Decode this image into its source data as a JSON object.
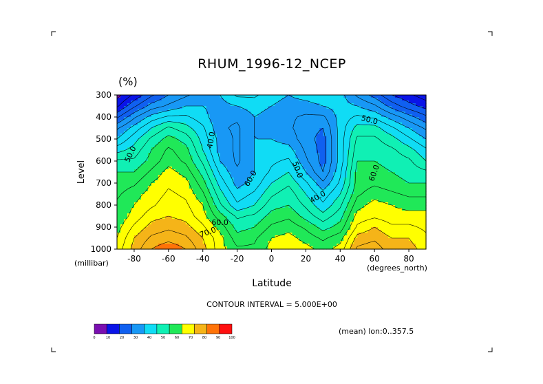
{
  "chart_data": {
    "type": "heatmap",
    "title": "RHUM_1996-12_NCEP",
    "units_label": "(%)",
    "ylabel": "Level",
    "ylabel_units": "(millibar)",
    "xlabel": "Latitude",
    "xlabel_units": "(degrees_north)",
    "contour_interval_text": "CONTOUR INTERVAL = 5.000E+00",
    "annotation": "(mean) lon:0..357.5",
    "xlim": [
      -90,
      90
    ],
    "ylim": [
      300,
      1000
    ],
    "x_ticks": [
      -80,
      -60,
      -40,
      -20,
      0,
      20,
      40,
      60,
      80
    ],
    "y_ticks": [
      300,
      400,
      500,
      600,
      700,
      800,
      900,
      1000
    ],
    "levels": [
      1000,
      950,
      900,
      850,
      800,
      750,
      700,
      650,
      600,
      550,
      500,
      450,
      400,
      350,
      300
    ],
    "latitudes": [
      -90,
      -80,
      -70,
      -60,
      -50,
      -40,
      -30,
      -20,
      -10,
      0,
      10,
      20,
      30,
      40,
      50,
      60,
      70,
      80,
      90
    ],
    "values": [
      [
        72,
        82,
        90,
        94,
        90,
        82,
        72,
        66,
        66,
        72,
        74,
        72,
        68,
        72,
        86,
        88,
        82,
        82,
        78
      ],
      [
        70,
        80,
        86,
        88,
        86,
        80,
        72,
        62,
        64,
        70,
        72,
        68,
        64,
        68,
        82,
        84,
        80,
        80,
        76
      ],
      [
        68,
        76,
        82,
        84,
        82,
        76,
        68,
        58,
        60,
        66,
        68,
        64,
        58,
        62,
        76,
        80,
        76,
        76,
        74
      ],
      [
        66,
        72,
        78,
        80,
        78,
        72,
        62,
        54,
        56,
        62,
        64,
        58,
        52,
        58,
        72,
        74,
        72,
        72,
        72
      ],
      [
        66,
        70,
        74,
        78,
        76,
        70,
        56,
        46,
        50,
        58,
        60,
        54,
        46,
        54,
        68,
        72,
        70,
        68,
        68
      ],
      [
        64,
        68,
        72,
        76,
        74,
        66,
        52,
        42,
        46,
        54,
        58,
        50,
        42,
        50,
        64,
        68,
        66,
        64,
        64
      ],
      [
        62,
        64,
        70,
        74,
        72,
        62,
        48,
        38,
        42,
        50,
        54,
        46,
        36,
        46,
        62,
        64,
        62,
        60,
        60
      ],
      [
        60,
        60,
        66,
        72,
        68,
        58,
        44,
        36,
        40,
        46,
        50,
        40,
        30,
        44,
        62,
        62,
        60,
        58,
        56
      ],
      [
        56,
        56,
        62,
        68,
        64,
        54,
        40,
        34,
        40,
        44,
        46,
        36,
        28,
        42,
        60,
        60,
        58,
        56,
        50
      ],
      [
        48,
        52,
        60,
        66,
        62,
        50,
        38,
        34,
        40,
        42,
        42,
        34,
        28,
        42,
        58,
        58,
        56,
        52,
        46
      ],
      [
        40,
        48,
        56,
        62,
        58,
        48,
        38,
        34,
        40,
        40,
        38,
        32,
        28,
        42,
        56,
        56,
        52,
        46,
        40
      ],
      [
        34,
        42,
        50,
        56,
        52,
        46,
        36,
        34,
        40,
        38,
        36,
        32,
        30,
        42,
        52,
        52,
        46,
        40,
        34
      ],
      [
        24,
        34,
        42,
        46,
        46,
        42,
        36,
        36,
        40,
        38,
        36,
        34,
        34,
        42,
        46,
        44,
        38,
        32,
        26
      ],
      [
        14,
        24,
        32,
        36,
        40,
        40,
        38,
        40,
        42,
        40,
        38,
        38,
        40,
        42,
        40,
        36,
        28,
        22,
        18
      ],
      [
        8,
        16,
        24,
        30,
        34,
        38,
        40,
        46,
        46,
        42,
        40,
        42,
        44,
        42,
        34,
        28,
        20,
        16,
        12
      ]
    ],
    "colorbar": {
      "ticks": [
        0,
        10,
        20,
        30,
        40,
        50,
        60,
        70,
        80,
        90,
        100
      ],
      "colors": [
        "#7a0fb0",
        "#0a14e8",
        "#1060f0",
        "#1898f5",
        "#10dcf5",
        "#10f0b4",
        "#20e858",
        "#ffff00",
        "#f5b418",
        "#ff7308",
        "#ff1010"
      ]
    },
    "contour_labels": [
      {
        "text": "40.0",
        "lat": -35,
        "lev": 505,
        "angle": -80
      },
      {
        "text": "50.0",
        "lat": -82,
        "lev": 570,
        "angle": -65
      },
      {
        "text": "50.0",
        "lat": 15,
        "lev": 640,
        "angle": 70
      },
      {
        "text": "60.0",
        "lat": -12,
        "lev": 680,
        "angle": -60
      },
      {
        "text": "40.0",
        "lat": 27,
        "lev": 765,
        "angle": -30
      },
      {
        "text": "50.0",
        "lat": 57,
        "lev": 415,
        "angle": 15
      },
      {
        "text": "60.0",
        "lat": 60,
        "lev": 655,
        "angle": -70
      },
      {
        "text": "60.0",
        "lat": -30,
        "lev": 882,
        "angle": 0
      },
      {
        "text": "70.0",
        "lat": -37,
        "lev": 925,
        "angle": -20
      }
    ]
  },
  "page_marks": {
    "corner_style": "crop-marks"
  }
}
